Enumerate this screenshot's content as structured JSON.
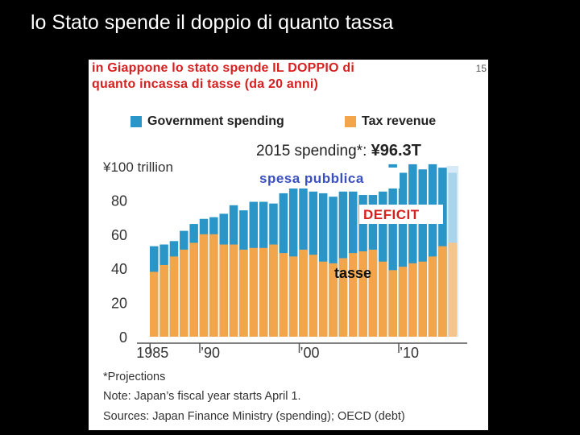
{
  "slide": {
    "title": "lo Stato spende il doppio di quanto tassa"
  },
  "figure": {
    "note_line1": "in Giappone lo stato spende IL DOPPIO di",
    "note_line2": "quanto incassa di tasse (da 20 anni)",
    "corner_mark": "15",
    "spending_note_label": "2015 spending*:",
    "spending_note_value": "¥96.3T",
    "footnotes": [
      "*Projections",
      "Note: Japan’s fiscal year starts April 1.",
      "Sources: Japan Finance Ministry (spending); OECD (debt)"
    ]
  },
  "chart_data": {
    "type": "bar",
    "title": "",
    "xlabel": "",
    "ylabel": "",
    "ylim": [
      0,
      100
    ],
    "y_ticks": [
      "0",
      "20",
      "40",
      "60",
      "80",
      "¥100 trillion"
    ],
    "y_tick_values": [
      0,
      20,
      40,
      60,
      80,
      100
    ],
    "x_tick_labels": [
      "1985",
      "’90",
      "’00",
      "’10"
    ],
    "x_tick_years": [
      1985,
      1990,
      2000,
      2010
    ],
    "categories": [
      "1985",
      "1986",
      "1987",
      "1988",
      "1989",
      "1990",
      "1991",
      "1992",
      "1993",
      "1994",
      "1995",
      "1996",
      "1997",
      "1998",
      "1999",
      "2000",
      "2001",
      "2002",
      "2003",
      "2004",
      "2005",
      "2006",
      "2007",
      "2008",
      "2009",
      "2010",
      "2011",
      "2012",
      "2013",
      "2014",
      "2015"
    ],
    "series": [
      {
        "name": "Government spending",
        "color": "#2a96c8",
        "values": [
          53,
          54,
          56,
          62,
          66,
          69,
          70,
          72,
          77,
          74,
          79,
          79,
          78,
          84,
          89,
          89,
          85,
          84,
          82,
          85,
          85,
          83,
          83,
          85,
          101,
          96,
          101,
          98,
          101,
          99,
          96
        ]
      },
      {
        "name": "Tax revenue",
        "color": "#f2a54a",
        "values": [
          38,
          42,
          47,
          51,
          55,
          60,
          60,
          54,
          54,
          51,
          52,
          52,
          54,
          49,
          47,
          51,
          48,
          44,
          43,
          46,
          49,
          50,
          51,
          44,
          39,
          41,
          43,
          44,
          47,
          53,
          55
        ]
      }
    ],
    "projection_from": "2015",
    "annotations": [
      "spesa pubblica",
      "DEFICIT",
      "tasse"
    ],
    "annotation_colors": {
      "spesa pubblica": "#3a4fc0",
      "DEFICIT": "#d62020",
      "tasse": "#111111"
    },
    "grid": false,
    "legend": "top"
  }
}
